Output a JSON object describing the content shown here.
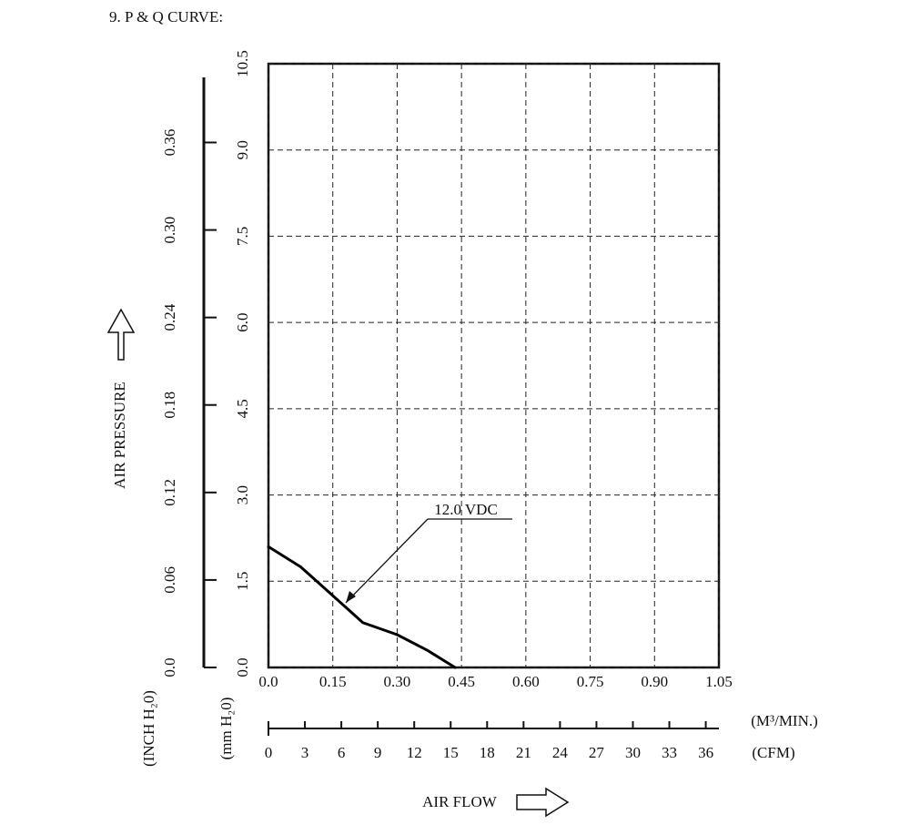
{
  "chart_data": {
    "type": "line",
    "title": "9. P & Q CURVE:",
    "x_label": "AIR FLOW",
    "y_label": "AIR PRESSURE",
    "x_unit": "(M³/MIN.)",
    "x2_unit": "(CFM)",
    "y_unit": "(mm H₂0)",
    "y2_unit": "(INCH H₂0)",
    "x": [
      0,
      0.075,
      0.15,
      0.22,
      0.3,
      0.37,
      0.435
    ],
    "series": [
      {
        "name": "12.0 VDC",
        "color": "#000000",
        "values": [
          2.1,
          1.75,
          1.25,
          0.78,
          0.57,
          0.3,
          0
        ]
      }
    ],
    "xlim": [
      0,
      1.05
    ],
    "xticks": [
      {
        "value": 0,
        "label": "0.0"
      },
      0.15,
      {
        "value": 0.3,
        "label": "0.30"
      },
      0.45,
      {
        "value": 0.6,
        "label": "0.60"
      },
      0.75,
      {
        "value": 0.9,
        "label": "0.90"
      },
      1.05
    ],
    "x2lim": [
      0,
      37.08
    ],
    "x2ticks": [
      0,
      3,
      6,
      9,
      12,
      15,
      18,
      21,
      24,
      27,
      30,
      33,
      36
    ],
    "ylim": [
      0,
      10.5
    ],
    "yticks": [
      {
        "value": 0,
        "label": "0.0"
      },
      1.5,
      {
        "value": 3,
        "label": "3.0"
      },
      4.5,
      {
        "value": 6,
        "label": "6.0"
      },
      7.5,
      {
        "value": 9,
        "label": "9.0"
      },
      10.5
    ],
    "y2lim": [
      0,
      0.414
    ],
    "y2ticks": [
      {
        "value": 0,
        "label": "0.0"
      },
      0.06,
      0.12,
      0.18,
      0.24,
      {
        "value": 0.3,
        "label": "0.30"
      },
      0.36
    ],
    "grid": true
  }
}
